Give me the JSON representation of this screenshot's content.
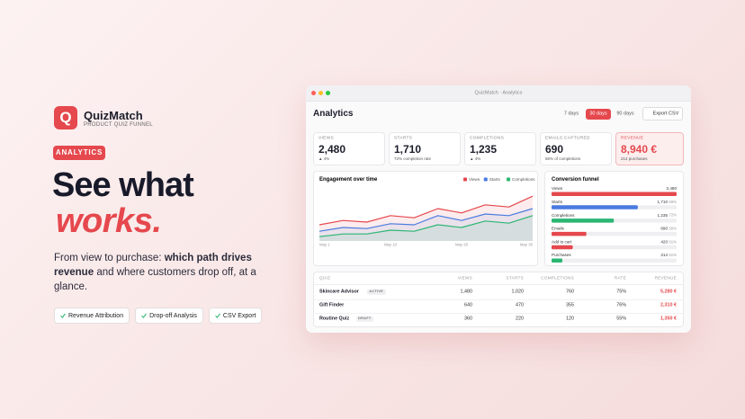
{
  "brand": {
    "logo": "Q",
    "name": "QuizMatch",
    "tagline": "PRODUCT QUIZ FUNNEL"
  },
  "badge": "ANALYTICS",
  "headline": {
    "line1": "See what",
    "line2": "works."
  },
  "description": {
    "lead": "From view to purchase:",
    "emphasis": "which path drives revenue",
    "tail": "and where customers drop off, at a glance."
  },
  "features": [
    "Revenue Attribution",
    "Drop-off Analysis",
    "CSV Export"
  ],
  "window": {
    "title": "QuizMatch · Analytics",
    "heading": "Analytics",
    "ranges": [
      "7 days",
      "30 days",
      "90 days"
    ],
    "active_range": 1,
    "export": "Export CSV"
  },
  "kpis": [
    {
      "label": "VIEWS",
      "value": "2,480",
      "note": "▲ 4%"
    },
    {
      "label": "STARTS",
      "value": "1,710",
      "note": "72% completion rate"
    },
    {
      "label": "COMPLETIONS",
      "value": "1,235",
      "note": "▲ 4%"
    },
    {
      "label": "EMAILS CAPTURED",
      "value": "690",
      "note": "56% of completions"
    },
    {
      "label": "REVENUE",
      "value": "8,940 €",
      "note": "214 purchases",
      "accent": true
    }
  ],
  "table": {
    "columns": [
      "QUIZ",
      "VIEWS",
      "STARTS",
      "COMPLETIONS",
      "RATE",
      "REVENUE"
    ],
    "rows": [
      {
        "name": "Skincare Advisor",
        "status": "ACTIVE",
        "cells": [
          "1,480",
          "1,020",
          "760",
          "75%",
          "5,280 €"
        ]
      },
      {
        "name": "Gift Finder",
        "cells": [
          "640",
          "470",
          "355",
          "76%",
          "2,310 €"
        ]
      },
      {
        "name": "Routine Quiz",
        "status": "DRAFT",
        "cells": [
          "360",
          "220",
          "120",
          "55%",
          "1,350 €"
        ]
      }
    ]
  },
  "chart_data": [
    {
      "type": "line",
      "title": "Engagement over time",
      "categories": [
        "May 1",
        null,
        null,
        "May 10",
        null,
        null,
        "May 20",
        null,
        null,
        "May 30"
      ],
      "series": [
        {
          "name": "Views",
          "color": "#e5484d",
          "values": [
            30,
            38,
            35,
            47,
            43,
            60,
            52,
            67,
            63,
            83
          ]
        },
        {
          "name": "Starts",
          "color": "#4a7be0",
          "values": [
            18,
            25,
            23,
            32,
            30,
            47,
            38,
            50,
            47,
            60
          ]
        },
        {
          "name": "Completions",
          "color": "#2bb673",
          "values": [
            8,
            13,
            13,
            20,
            18,
            30,
            25,
            37,
            33,
            47
          ]
        }
      ],
      "ylim": [
        0,
        100
      ],
      "area": true
    },
    {
      "type": "bar",
      "orientation": "horizontal",
      "title": "Conversion funnel",
      "categories": [
        "Views",
        "Starts",
        "Completions",
        "Emails",
        "Add to cart",
        "Purchases"
      ],
      "values": [
        2480,
        1710,
        1235,
        690,
        420,
        214
      ],
      "value_labels": [
        "2,480",
        "1,710",
        "1,235",
        "690",
        "420",
        "214"
      ],
      "rates": [
        null,
        "69%",
        "72%",
        "56%",
        "61%",
        "51%"
      ],
      "colors": [
        "#e5484d",
        "#4a7be0",
        "#2bb673",
        "#e5484d",
        "#e5484d",
        "#2bb673"
      ],
      "xlim": [
        0,
        2480
      ]
    }
  ]
}
